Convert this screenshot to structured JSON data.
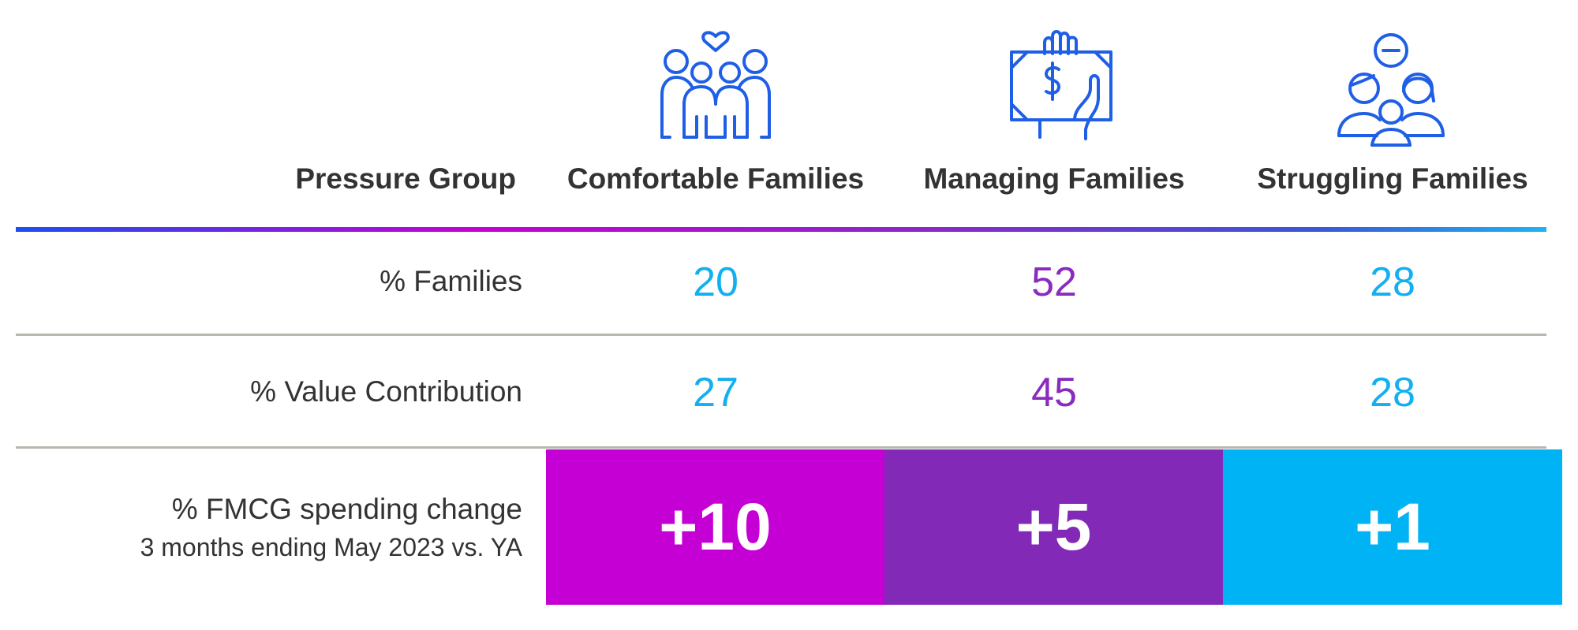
{
  "colors": {
    "comfortable": "#c400d4",
    "managing": "#8229b8",
    "struggling": "#00b3f5",
    "managing_text": "#8a2bbf",
    "light_blue_text": "#12b0f0",
    "icon_blue": "#1f5fe6"
  },
  "chart_data": {
    "type": "table",
    "header_label": "Pressure Group",
    "columns": [
      {
        "name": "Comfortable Families",
        "icon": "family-heart-icon"
      },
      {
        "name": "Managing Families",
        "icon": "hand-money-icon"
      },
      {
        "name": "Struggling Families",
        "icon": "family-minus-icon"
      }
    ],
    "rows": [
      {
        "label": "% Families",
        "values": [
          "20",
          "52",
          "28"
        ]
      },
      {
        "label": "% Value Contribution",
        "values": [
          "27",
          "45",
          "28"
        ]
      },
      {
        "label": "% FMCG spending change",
        "sublabel": "3 months ending May 2023 vs. YA",
        "values": [
          "+10",
          "+5",
          "+1"
        ]
      }
    ]
  }
}
